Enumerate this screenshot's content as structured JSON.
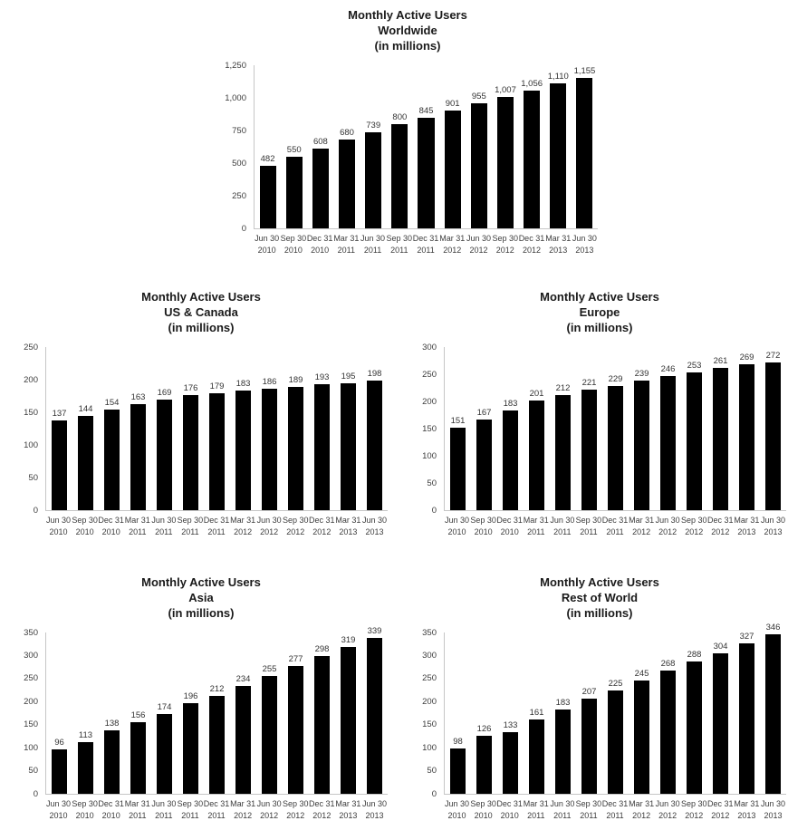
{
  "page": {
    "background": "#ffffff",
    "bar_color": "#000000",
    "axis_color": "#c6c6c6",
    "text_color": "#3d3d3d"
  },
  "chart_data": [
    {
      "type": "bar",
      "title": "Monthly Active Users",
      "region": "Worldwide",
      "units": "(in millions)",
      "grid": false,
      "legend": "none",
      "bar_color": "#000000",
      "categories": [
        [
          "Jun 30",
          "2010"
        ],
        [
          "Sep 30",
          "2010"
        ],
        [
          "Dec 31",
          "2010"
        ],
        [
          "Mar 31",
          "2011"
        ],
        [
          "Jun 30",
          "2011"
        ],
        [
          "Sep 30",
          "2011"
        ],
        [
          "Dec 31",
          "2011"
        ],
        [
          "Mar 31",
          "2012"
        ],
        [
          "Jun 30",
          "2012"
        ],
        [
          "Sep 30",
          "2012"
        ],
        [
          "Dec 31",
          "2012"
        ],
        [
          "Mar 31",
          "2013"
        ],
        [
          "Jun 30",
          "2013"
        ]
      ],
      "values": [
        482,
        550,
        608,
        680,
        739,
        800,
        845,
        901,
        955,
        1007,
        1056,
        1110,
        1155
      ],
      "value_labels": [
        "482",
        "550",
        "608",
        "680",
        "739",
        "800",
        "845",
        "901",
        "955",
        "1,007",
        "1,056",
        "1,110",
        "1,155"
      ],
      "ylim": [
        0,
        1250
      ],
      "yticks": [
        0,
        250,
        500,
        750,
        1000,
        1250
      ],
      "ytick_labels": [
        "0",
        "250",
        "500",
        "750",
        "1,000",
        "1,250"
      ]
    },
    {
      "type": "bar",
      "title": "Monthly Active Users",
      "region": "US & Canada",
      "units": "(in millions)",
      "grid": false,
      "legend": "none",
      "bar_color": "#000000",
      "categories": [
        [
          "Jun 30",
          "2010"
        ],
        [
          "Sep 30",
          "2010"
        ],
        [
          "Dec 31",
          "2010"
        ],
        [
          "Mar 31",
          "2011"
        ],
        [
          "Jun 30",
          "2011"
        ],
        [
          "Sep 30",
          "2011"
        ],
        [
          "Dec 31",
          "2011"
        ],
        [
          "Mar 31",
          "2012"
        ],
        [
          "Jun 30",
          "2012"
        ],
        [
          "Sep 30",
          "2012"
        ],
        [
          "Dec 31",
          "2012"
        ],
        [
          "Mar 31",
          "2013"
        ],
        [
          "Jun 30",
          "2013"
        ]
      ],
      "values": [
        137,
        144,
        154,
        163,
        169,
        176,
        179,
        183,
        186,
        189,
        193,
        195,
        198
      ],
      "value_labels": [
        "137",
        "144",
        "154",
        "163",
        "169",
        "176",
        "179",
        "183",
        "186",
        "189",
        "193",
        "195",
        "198"
      ],
      "ylim": [
        0,
        250
      ],
      "yticks": [
        0,
        50,
        100,
        150,
        200,
        250
      ],
      "ytick_labels": [
        "0",
        "50",
        "100",
        "150",
        "200",
        "250"
      ]
    },
    {
      "type": "bar",
      "title": "Monthly Active Users",
      "region": "Europe",
      "units": "(in millions)",
      "grid": false,
      "legend": "none",
      "bar_color": "#000000",
      "categories": [
        [
          "Jun 30",
          "2010"
        ],
        [
          "Sep 30",
          "2010"
        ],
        [
          "Dec 31",
          "2010"
        ],
        [
          "Mar 31",
          "2011"
        ],
        [
          "Jun 30",
          "2011"
        ],
        [
          "Sep 30",
          "2011"
        ],
        [
          "Dec 31",
          "2011"
        ],
        [
          "Mar 31",
          "2012"
        ],
        [
          "Jun 30",
          "2012"
        ],
        [
          "Sep 30",
          "2012"
        ],
        [
          "Dec 31",
          "2012"
        ],
        [
          "Mar 31",
          "2013"
        ],
        [
          "Jun 30",
          "2013"
        ]
      ],
      "values": [
        151,
        167,
        183,
        201,
        212,
        221,
        229,
        239,
        246,
        253,
        261,
        269,
        272
      ],
      "value_labels": [
        "151",
        "167",
        "183",
        "201",
        "212",
        "221",
        "229",
        "239",
        "246",
        "253",
        "261",
        "269",
        "272"
      ],
      "ylim": [
        0,
        300
      ],
      "yticks": [
        0,
        50,
        100,
        150,
        200,
        250,
        300
      ],
      "ytick_labels": [
        "0",
        "50",
        "100",
        "150",
        "200",
        "250",
        "300"
      ]
    },
    {
      "type": "bar",
      "title": "Monthly Active Users",
      "region": "Asia",
      "units": "(in millions)",
      "grid": false,
      "legend": "none",
      "bar_color": "#000000",
      "categories": [
        [
          "Jun 30",
          "2010"
        ],
        [
          "Sep 30",
          "2010"
        ],
        [
          "Dec 31",
          "2010"
        ],
        [
          "Mar 31",
          "2011"
        ],
        [
          "Jun 30",
          "2011"
        ],
        [
          "Sep 30",
          "2011"
        ],
        [
          "Dec 31",
          "2011"
        ],
        [
          "Mar 31",
          "2012"
        ],
        [
          "Jun 30",
          "2012"
        ],
        [
          "Sep 30",
          "2012"
        ],
        [
          "Dec 31",
          "2012"
        ],
        [
          "Mar 31",
          "2013"
        ],
        [
          "Jun 30",
          "2013"
        ]
      ],
      "values": [
        96,
        113,
        138,
        156,
        174,
        196,
        212,
        234,
        255,
        277,
        298,
        319,
        339
      ],
      "value_labels": [
        "96",
        "113",
        "138",
        "156",
        "174",
        "196",
        "212",
        "234",
        "255",
        "277",
        "298",
        "319",
        "339"
      ],
      "ylim": [
        0,
        350
      ],
      "yticks": [
        0,
        50,
        100,
        150,
        200,
        250,
        300,
        350
      ],
      "ytick_labels": [
        "0",
        "50",
        "100",
        "150",
        "200",
        "250",
        "300",
        "350"
      ]
    },
    {
      "type": "bar",
      "title": "Monthly Active Users",
      "region": "Rest of World",
      "units": "(in millions)",
      "grid": false,
      "legend": "none",
      "bar_color": "#000000",
      "categories": [
        [
          "Jun 30",
          "2010"
        ],
        [
          "Sep 30",
          "2010"
        ],
        [
          "Dec 31",
          "2010"
        ],
        [
          "Mar 31",
          "2011"
        ],
        [
          "Jun 30",
          "2011"
        ],
        [
          "Sep 30",
          "2011"
        ],
        [
          "Dec 31",
          "2011"
        ],
        [
          "Mar 31",
          "2012"
        ],
        [
          "Jun 30",
          "2012"
        ],
        [
          "Sep 30",
          "2012"
        ],
        [
          "Dec 31",
          "2012"
        ],
        [
          "Mar 31",
          "2013"
        ],
        [
          "Jun 30",
          "2013"
        ]
      ],
      "values": [
        98,
        126,
        133,
        161,
        183,
        207,
        225,
        245,
        268,
        288,
        304,
        327,
        346
      ],
      "value_labels": [
        "98",
        "126",
        "133",
        "161",
        "183",
        "207",
        "225",
        "245",
        "268",
        "288",
        "304",
        "327",
        "346"
      ],
      "ylim": [
        0,
        350
      ],
      "yticks": [
        0,
        50,
        100,
        150,
        200,
        250,
        300,
        350
      ],
      "ytick_labels": [
        "0",
        "50",
        "100",
        "150",
        "200",
        "250",
        "300",
        "350"
      ]
    }
  ]
}
